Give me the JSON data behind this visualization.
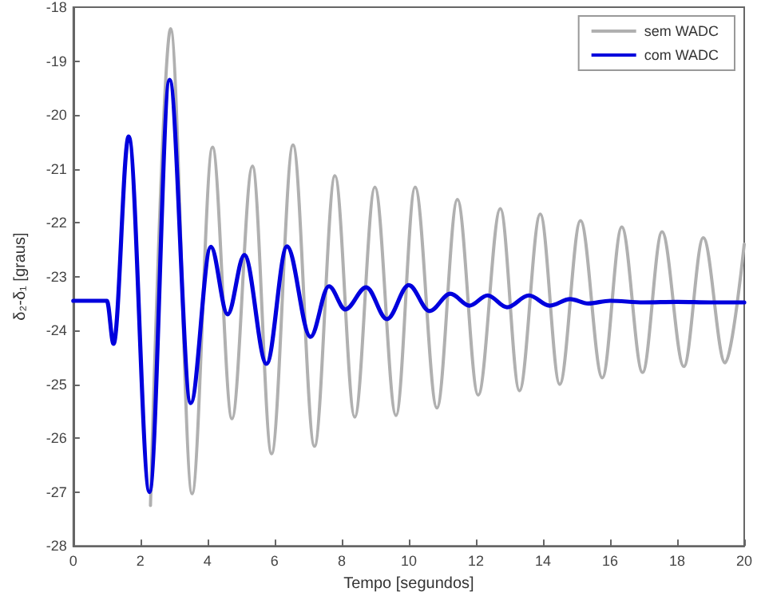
{
  "chart_data": {
    "type": "line",
    "xlabel": "Tempo [segundos]",
    "ylabel": "δ₂-δ₁ [graus]",
    "xlim": [
      0,
      20
    ],
    "xticks": [
      0,
      2,
      4,
      6,
      8,
      10,
      12,
      14,
      16,
      18,
      20
    ],
    "ylim": [
      -28,
      -18
    ],
    "yticks": [
      -28,
      -27,
      -26,
      -25,
      -24,
      -23,
      -22,
      -21,
      -20,
      -19,
      -18
    ],
    "grid": false,
    "legend": "top right",
    "marker": "none",
    "line_style": "solid",
    "series": [
      {
        "name": "sem WADC",
        "color": "#b0b0b0",
        "x": [
          2.3,
          2.9,
          3.54,
          4.15,
          4.73,
          5.34,
          5.91,
          6.55,
          7.19,
          7.8,
          8.39,
          8.99,
          9.62,
          10.19,
          10.84,
          11.45,
          12.07,
          12.73,
          13.3,
          13.92,
          14.5,
          15.12,
          15.77,
          16.35,
          16.97,
          17.55,
          18.2,
          18.78,
          19.43,
          20
        ],
        "values": [
          -27.25,
          -18.4,
          -27.03,
          -20.6,
          -25.64,
          -20.95,
          -26.29,
          -20.56,
          -26.15,
          -21.13,
          -25.61,
          -21.34,
          -25.58,
          -21.34,
          -25.44,
          -21.57,
          -25.2,
          -21.74,
          -25.12,
          -21.84,
          -25.0,
          -21.96,
          -24.88,
          -22.08,
          -24.78,
          -22.17,
          -24.67,
          -22.28,
          -24.6,
          -22.4
        ]
      },
      {
        "name": "com WADC",
        "color": "#0000dd",
        "x": [
          0,
          1.0,
          1.2,
          1.65,
          2.27,
          2.87,
          3.5,
          4.1,
          4.6,
          5.1,
          5.76,
          6.37,
          7.07,
          7.62,
          8.11,
          8.73,
          9.35,
          10.0,
          10.62,
          11.24,
          11.81,
          12.35,
          12.93,
          13.58,
          14.2,
          14.81,
          15.35,
          16.0,
          17.0,
          18.0,
          19.0,
          20
        ],
        "values": [
          -23.45,
          -23.45,
          -24.25,
          -20.4,
          -27.0,
          -19.35,
          -25.35,
          -22.45,
          -23.7,
          -22.6,
          -24.62,
          -22.44,
          -24.12,
          -23.18,
          -23.61,
          -23.2,
          -23.79,
          -23.16,
          -23.64,
          -23.32,
          -23.54,
          -23.35,
          -23.57,
          -23.35,
          -23.54,
          -23.42,
          -23.5,
          -23.45,
          -23.48,
          -23.47,
          -23.48,
          -23.48
        ]
      }
    ]
  }
}
